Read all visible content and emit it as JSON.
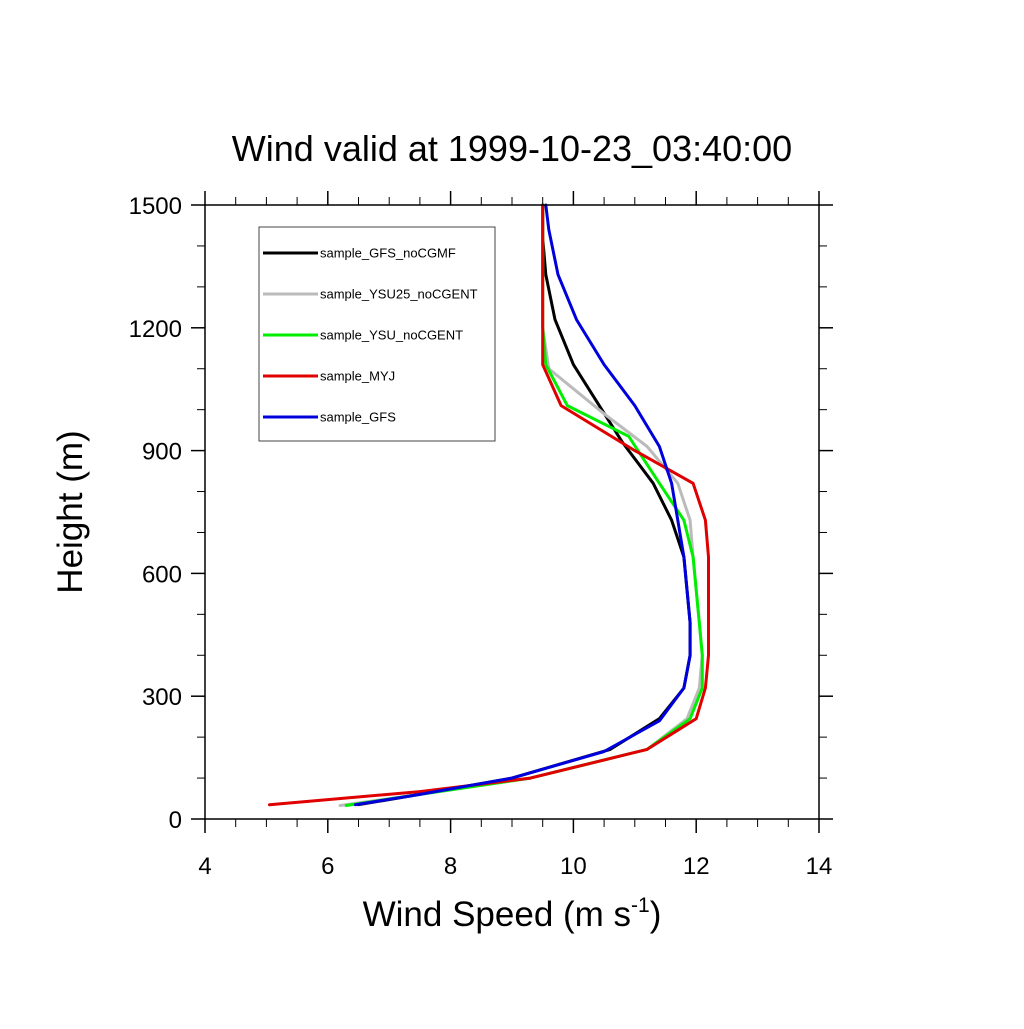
{
  "chart_data": {
    "type": "line",
    "title": "Wind valid at 1999-10-23_03:40:00",
    "xlabel": "Wind Speed (m s",
    "xlabel_sup": "-1",
    "xlabel_close": ")",
    "ylabel": "Height (m)",
    "xlim": [
      4,
      14
    ],
    "ylim": [
      0,
      1500
    ],
    "x_ticks": [
      4,
      6,
      8,
      10,
      12,
      14
    ],
    "y_ticks": [
      0,
      300,
      600,
      900,
      1200,
      1500
    ],
    "x_tick_labels": [
      "4",
      "6",
      "8",
      "10",
      "12",
      "14"
    ],
    "y_tick_labels": [
      "0",
      "300",
      "600",
      "900",
      "1200",
      "1500"
    ],
    "legend_position": "top-left",
    "grid": false,
    "series": [
      {
        "name": "sample_GFS_noCGMF",
        "color": "#000000",
        "points": [
          [
            6.5,
            35
          ],
          [
            7.5,
            60
          ],
          [
            9.0,
            100
          ],
          [
            10.6,
            170
          ],
          [
            11.4,
            245
          ],
          [
            11.8,
            320
          ],
          [
            11.9,
            400
          ],
          [
            11.9,
            480
          ],
          [
            11.85,
            560
          ],
          [
            11.8,
            640
          ],
          [
            11.6,
            730
          ],
          [
            11.3,
            820
          ],
          [
            10.8,
            920
          ],
          [
            10.0,
            1110
          ],
          [
            9.7,
            1220
          ],
          [
            9.55,
            1330
          ],
          [
            9.5,
            1420
          ],
          [
            9.5,
            1500
          ]
        ]
      },
      {
        "name": "sample_YSU25_noCGENT",
        "color": "#bbbbbb",
        "points": [
          [
            6.2,
            33
          ],
          [
            7.5,
            60
          ],
          [
            9.3,
            100
          ],
          [
            11.2,
            170
          ],
          [
            11.85,
            245
          ],
          [
            12.05,
            320
          ],
          [
            12.1,
            400
          ],
          [
            12.05,
            480
          ],
          [
            12.0,
            560
          ],
          [
            11.95,
            640
          ],
          [
            11.9,
            730
          ],
          [
            11.7,
            820
          ],
          [
            11.2,
            910
          ],
          [
            10.5,
            990
          ],
          [
            9.6,
            1100
          ],
          [
            9.5,
            1200
          ],
          [
            9.5,
            1330
          ],
          [
            9.5,
            1500
          ]
        ]
      },
      {
        "name": "sample_YSU_noCGENT",
        "color": "#00ee00",
        "points": [
          [
            6.3,
            33
          ],
          [
            7.5,
            60
          ],
          [
            9.3,
            100
          ],
          [
            11.2,
            170
          ],
          [
            11.9,
            245
          ],
          [
            12.1,
            320
          ],
          [
            12.1,
            400
          ],
          [
            12.05,
            480
          ],
          [
            12.0,
            560
          ],
          [
            11.95,
            640
          ],
          [
            11.8,
            730
          ],
          [
            11.4,
            820
          ],
          [
            10.9,
            935
          ],
          [
            9.9,
            1010
          ],
          [
            9.55,
            1110
          ],
          [
            9.5,
            1200
          ],
          [
            9.5,
            1330
          ],
          [
            9.5,
            1500
          ]
        ]
      },
      {
        "name": "sample_MYJ",
        "color": "#e00000",
        "points": [
          [
            5.05,
            35
          ],
          [
            7.5,
            67
          ],
          [
            9.3,
            100
          ],
          [
            11.2,
            170
          ],
          [
            12.0,
            245
          ],
          [
            12.15,
            320
          ],
          [
            12.2,
            400
          ],
          [
            12.2,
            480
          ],
          [
            12.2,
            560
          ],
          [
            12.2,
            640
          ],
          [
            12.15,
            730
          ],
          [
            11.95,
            820
          ],
          [
            11.0,
            900
          ],
          [
            9.8,
            1010
          ],
          [
            9.5,
            1110
          ],
          [
            9.5,
            1200
          ],
          [
            9.5,
            1330
          ],
          [
            9.5,
            1500
          ]
        ]
      },
      {
        "name": "sample_GFS",
        "color": "#0000dd",
        "points": [
          [
            6.45,
            35
          ],
          [
            7.5,
            60
          ],
          [
            9.0,
            100
          ],
          [
            10.5,
            165
          ],
          [
            11.4,
            240
          ],
          [
            11.8,
            320
          ],
          [
            11.9,
            400
          ],
          [
            11.9,
            480
          ],
          [
            11.85,
            560
          ],
          [
            11.8,
            640
          ],
          [
            11.7,
            730
          ],
          [
            11.6,
            820
          ],
          [
            11.4,
            910
          ],
          [
            11.0,
            1010
          ],
          [
            10.5,
            1110
          ],
          [
            10.05,
            1220
          ],
          [
            9.75,
            1330
          ],
          [
            9.6,
            1440
          ],
          [
            9.55,
            1500
          ]
        ]
      }
    ]
  }
}
